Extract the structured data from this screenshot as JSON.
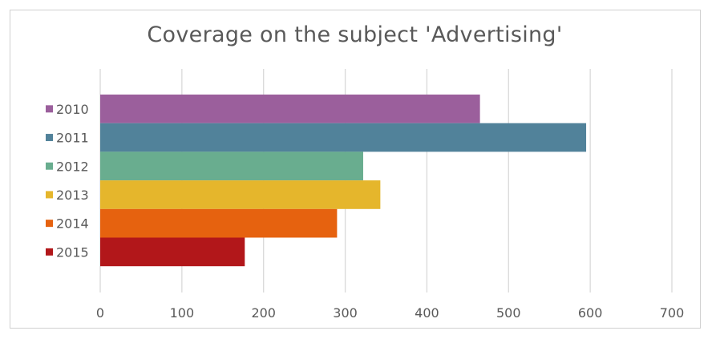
{
  "chart_data": {
    "type": "bar",
    "orientation": "horizontal",
    "title": "Coverage on the subject 'Advertising'",
    "xlabel": "",
    "ylabel": "",
    "categories": [
      "2010",
      "2011",
      "2012",
      "2013",
      "2014",
      "2015"
    ],
    "values": [
      465,
      595,
      322,
      343,
      290,
      177
    ],
    "colors": [
      "#9b5f9c",
      "#51829a",
      "#69ad8f",
      "#e5b62c",
      "#e6620f",
      "#b2171a"
    ],
    "xlim": [
      0,
      700
    ],
    "ticks": [
      "0",
      "100",
      "200",
      "300",
      "400",
      "500",
      "600",
      "700"
    ],
    "grid": true,
    "legend_position": "left"
  }
}
